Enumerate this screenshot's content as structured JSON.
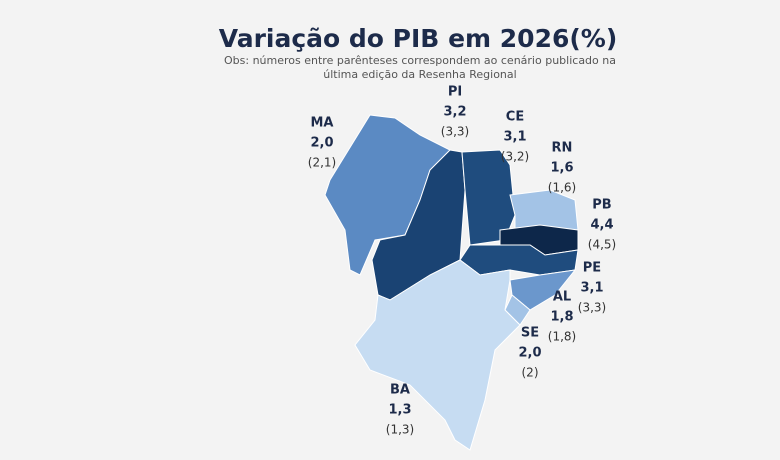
{
  "title": "Variação do PIB em 2026(%)",
  "subtitle": [
    "Obs: números entre parênteses correspondem ao cenário publicado na",
    "última edição da Resenha Regional"
  ],
  "regions": [
    {
      "code": "MA",
      "value": "2,0",
      "previous": "(2,1)",
      "color": "#5b8ac3"
    },
    {
      "code": "PI",
      "value": "3,2",
      "previous": "(3,3)",
      "color": "#1a4373"
    },
    {
      "code": "CE",
      "value": "3,1",
      "previous": "(3,2)",
      "color": "#1f4c7e"
    },
    {
      "code": "RN",
      "value": "1,6",
      "previous": "(1,6)",
      "color": "#a3c3e6"
    },
    {
      "code": "PB",
      "value": "4,4",
      "previous": "(4,5)",
      "color": "#0d274a"
    },
    {
      "code": "PE",
      "value": "3,1",
      "previous": "(3,3)",
      "color": "#1f4c7e"
    },
    {
      "code": "AL",
      "value": "1,8",
      "previous": "(1,8)",
      "color": "#6b97cc"
    },
    {
      "code": "SE",
      "value": "2,0",
      "previous": "(2)",
      "color": "#a3c3e6"
    },
    {
      "code": "BA",
      "value": "1,3",
      "previous": "(1,3)",
      "color": "#c6dcf2"
    }
  ]
}
